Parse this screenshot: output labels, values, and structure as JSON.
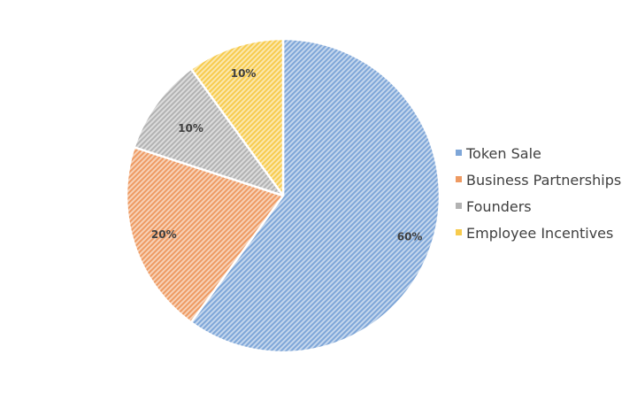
{
  "chart_data": {
    "type": "pie",
    "title": "",
    "categories": [
      "Token Sale",
      "Business Partnerships",
      "Founders",
      "Employee Incentives"
    ],
    "values": [
      60,
      20,
      10,
      10
    ],
    "data_labels": [
      "60%",
      "20%",
      "10%",
      "10%"
    ],
    "colors": [
      "#7ea6d8",
      "#ee9a62",
      "#b2b2b2",
      "#f7cb4d"
    ],
    "fill_pattern": "diagonal-stripes",
    "start_angle_deg": 0,
    "direction": "clockwise",
    "legend": {
      "position": "right",
      "entries": [
        "Token Sale",
        "Business Partnerships",
        "Founders",
        "Employee Incentives"
      ]
    }
  }
}
